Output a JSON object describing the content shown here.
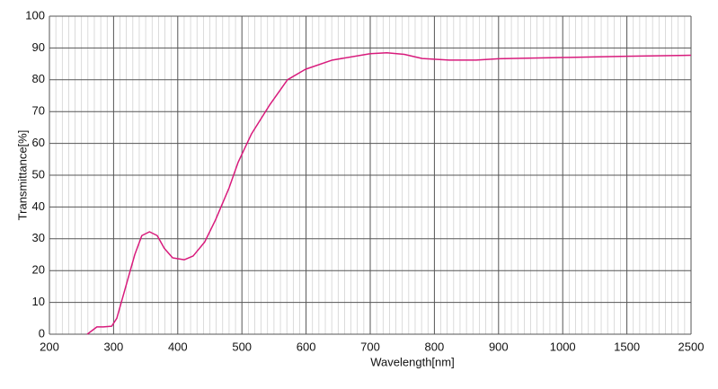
{
  "chart_data": {
    "type": "line",
    "x_label": "Wavelength[nm]",
    "y_label": "Transmittance[%]",
    "x": [
      259,
      274,
      284,
      297,
      305,
      319,
      333,
      344,
      356,
      368,
      379,
      392,
      410,
      424,
      442,
      459,
      480,
      494,
      515,
      543,
      571,
      599,
      641,
      700,
      726,
      753,
      781,
      823,
      865,
      900,
      1000,
      1500,
      2500
    ],
    "series": [
      {
        "name": "Transmittance",
        "color": "#d81b7c",
        "values": [
          0,
          2.3,
          2.3,
          2.5,
          5,
          15,
          25,
          31,
          32.2,
          31,
          27,
          24,
          23.4,
          24.6,
          29,
          36,
          46,
          54,
          63,
          72,
          80,
          83.3,
          86.2,
          88.2,
          88.5,
          88,
          86.7,
          86.2,
          86.2,
          86.6,
          87,
          87.4,
          87.7
        ]
      }
    ],
    "xlim": [
      200,
      2500
    ],
    "xticks": [
      200,
      300,
      400,
      500,
      600,
      700,
      800,
      900,
      1000,
      1500,
      2500
    ],
    "ylim": [
      0,
      100
    ],
    "yticks": [
      0,
      10,
      20,
      30,
      40,
      50,
      60,
      70,
      80,
      90,
      100
    ],
    "grid": true
  }
}
